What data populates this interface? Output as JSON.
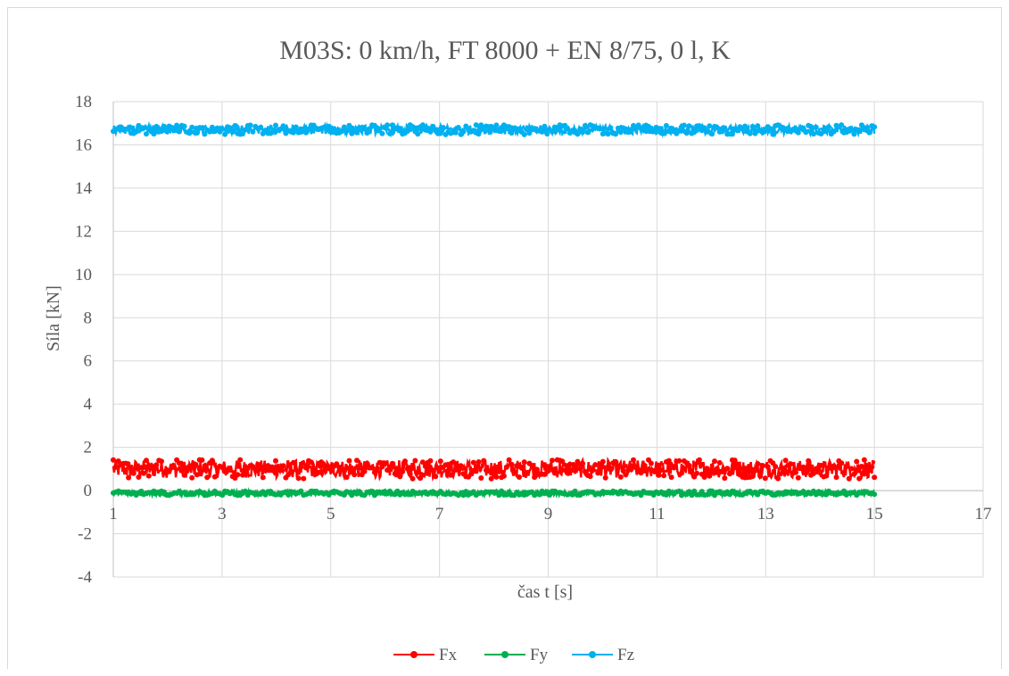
{
  "chart_data": {
    "type": "scatter",
    "title": "M03S: 0 km/h, FT 8000 + EN 8/75, 0 l, K",
    "xlabel": "čas t [s]",
    "ylabel": "Síla [kN]",
    "xlim": [
      1,
      17
    ],
    "ylim": [
      -4,
      18
    ],
    "xticks": [
      1,
      3,
      5,
      7,
      9,
      11,
      13,
      15,
      17
    ],
    "yticks": [
      -4,
      -2,
      0,
      2,
      4,
      6,
      8,
      10,
      12,
      14,
      16,
      18
    ],
    "grid": true,
    "legend_position": "bottom",
    "series": [
      {
        "name": "Fx",
        "color": "#ff0000",
        "x_range": [
          1,
          15
        ],
        "mean": 1.0,
        "min": 0.6,
        "max": 1.5
      },
      {
        "name": "Fy",
        "color": "#00b050",
        "x_range": [
          1,
          15
        ],
        "mean": -0.12,
        "min": -0.22,
        "max": -0.02
      },
      {
        "name": "Fz",
        "color": "#00b0f0",
        "x_range": [
          1,
          15
        ],
        "mean": 16.7,
        "min": 16.45,
        "max": 16.9
      }
    ]
  }
}
